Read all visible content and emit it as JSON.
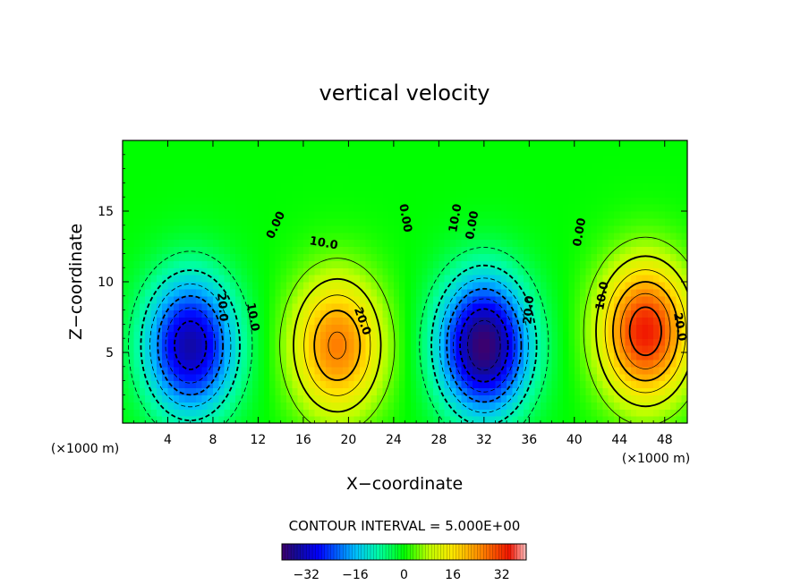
{
  "chart_data": {
    "type": "heatmap",
    "title": "vertical velocity",
    "xlabel": "X−coordinate",
    "ylabel": "Z−coordinate",
    "x_unit_label": "(×1000 m)",
    "x_unit_label_right": "(×1000 m)",
    "xlim": [
      0,
      50
    ],
    "ylim": [
      0,
      20
    ],
    "x_ticks": [
      4,
      8,
      12,
      16,
      20,
      24,
      28,
      32,
      36,
      40,
      44,
      48
    ],
    "x_tick_labels": [
      "4",
      "8",
      "12",
      "16",
      "20",
      "24",
      "28",
      "32",
      "36",
      "40",
      "44",
      "48"
    ],
    "y_ticks": [
      5,
      10,
      15
    ],
    "y_tick_labels": [
      "5",
      "10",
      "15"
    ],
    "contour_interval_text": "CONTOUR INTERVAL = 5.000E+00",
    "contour_interval": 5,
    "cells": [
      {
        "x": 6,
        "z": 5.5,
        "w": -34,
        "type": "downdraft"
      },
      {
        "x": 19,
        "z": 5.5,
        "w": 26,
        "type": "updraft"
      },
      {
        "x": 32,
        "z": 5.5,
        "w": -40,
        "type": "downdraft"
      },
      {
        "x": 46.3,
        "z": 6.5,
        "w": 34,
        "type": "updraft"
      }
    ],
    "contour_labels": [
      {
        "text": "0.00",
        "x": 13.6,
        "z": 14.0,
        "angle": -65
      },
      {
        "text": "10.0",
        "x": 17.8,
        "z": 12.7,
        "angle": 10
      },
      {
        "text": "20.0",
        "x": 21.2,
        "z": 7.2,
        "angle": 70
      },
      {
        "text": "0.00",
        "x": 25.0,
        "z": 14.5,
        "angle": 80
      },
      {
        "text": "20.0",
        "x": 8.8,
        "z": 8.2,
        "angle": 85
      },
      {
        "text": "10.0",
        "x": 11.5,
        "z": 7.5,
        "angle": 80
      },
      {
        "text": "10.0",
        "x": 29.5,
        "z": 14.5,
        "angle": -80
      },
      {
        "text": "0.00",
        "x": 31.0,
        "z": 14.0,
        "angle": -80
      },
      {
        "text": "20.0",
        "x": 36.0,
        "z": 8.0,
        "angle": -85
      },
      {
        "text": "0.00",
        "x": 40.5,
        "z": 13.5,
        "angle": -80
      },
      {
        "text": "10.0",
        "x": 42.5,
        "z": 9.0,
        "angle": -80
      },
      {
        "text": "20.0",
        "x": 49.3,
        "z": 6.8,
        "angle": 80
      }
    ],
    "colorbar": {
      "min": -40,
      "max": 40,
      "ticks": [
        -32,
        -16,
        0,
        16,
        32
      ],
      "tick_labels": [
        "−32",
        "−16",
        "0",
        "16",
        "32"
      ]
    }
  }
}
